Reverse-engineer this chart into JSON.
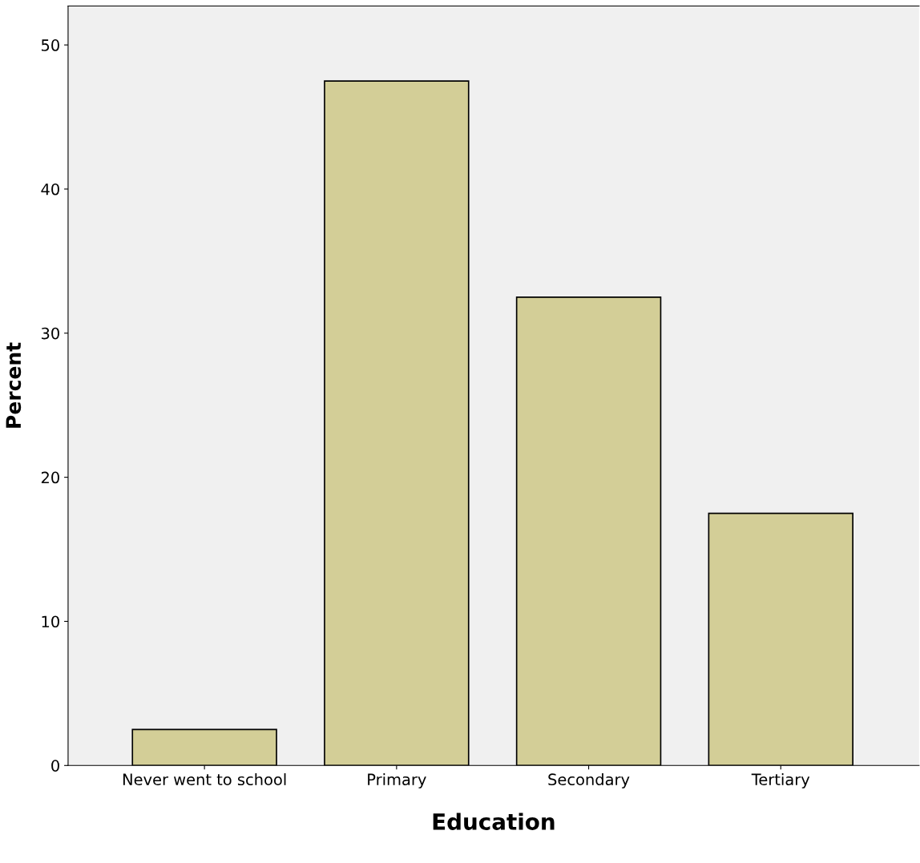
{
  "chart_data": {
    "type": "bar",
    "xlabel": "Education",
    "ylabel": "Percent",
    "categories": [
      "Never went to school",
      "Primary",
      "Secondary",
      "Tertiary"
    ],
    "values": [
      2.5,
      47.5,
      32.5,
      17.5
    ],
    "color": "#d3ce97",
    "ylim": [
      0,
      52.7
    ],
    "yticks": [
      0,
      10,
      20,
      30,
      40,
      50
    ],
    "grid": false
  }
}
